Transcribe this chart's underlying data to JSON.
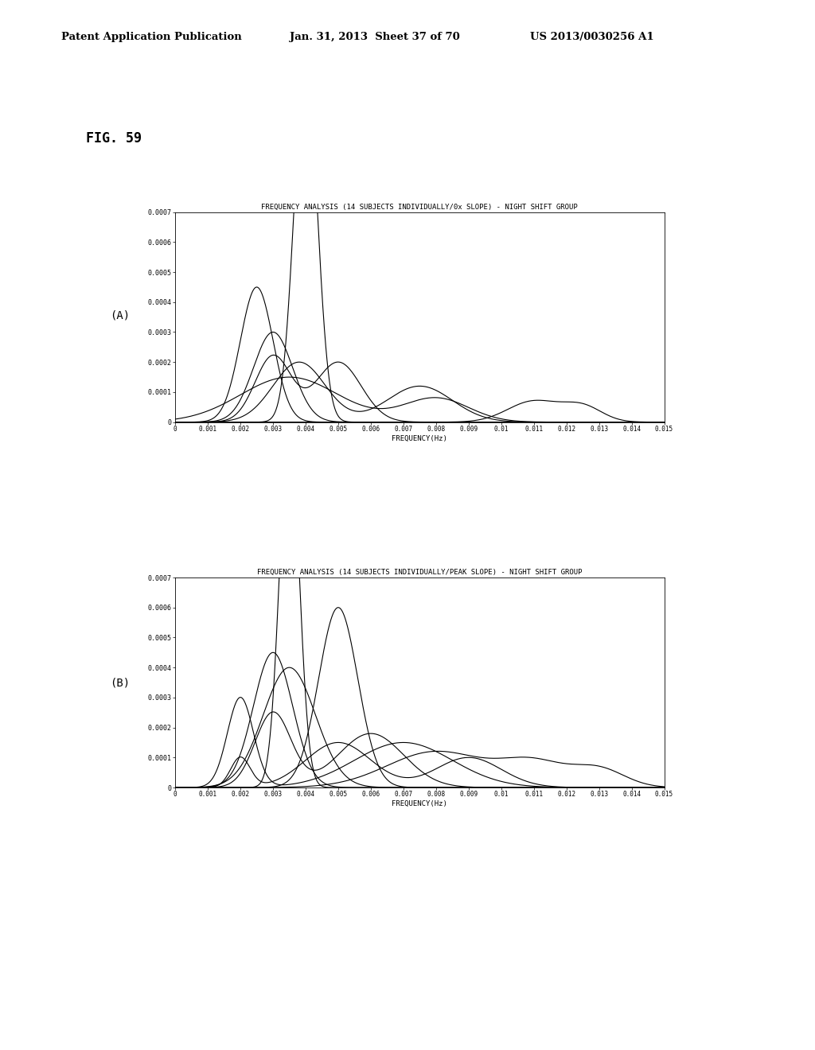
{
  "title_A": "FREQUENCY ANALYSIS (14 SUBJECTS INDIVIDUALLY/0x SLOPE) - NIGHT SHIFT GROUP",
  "title_B": "FREQUENCY ANALYSIS (14 SUBJECTS INDIVIDUALLY/PEAK SLOPE) - NIGHT SHIFT GROUP",
  "xlabel": "FREQUENCY(Hz)",
  "fig_label": "FIG. 59",
  "label_A": "(A)",
  "label_B": "(B)",
  "header_left": "Patent Application Publication",
  "header_mid": "Jan. 31, 2013  Sheet 37 of 70",
  "header_right": "US 2013/0030256 A1",
  "xlim": [
    0,
    0.015
  ],
  "ylim": [
    0,
    0.0007
  ],
  "xtick_labels": [
    "0",
    "0.001",
    "0.002",
    "0.003",
    "0.004",
    "0.005",
    "0.006",
    "0.007",
    "0.008",
    "0.009",
    "0.01",
    "0.011",
    "0.012",
    "0.013",
    "0.014",
    "0.015"
  ],
  "xtick_vals": [
    0,
    0.001,
    0.002,
    0.003,
    0.004,
    0.005,
    0.006,
    0.007,
    0.008,
    0.009,
    0.01,
    0.011,
    0.012,
    0.013,
    0.014,
    0.015
  ],
  "ytick_labels": [
    "0",
    "0.0001",
    "0.0002",
    "0.0003",
    "0.0004",
    "0.0005",
    "0.0006",
    "0.0007"
  ],
  "ytick_vals": [
    0,
    0.0001,
    0.0002,
    0.0003,
    0.0004,
    0.0005,
    0.0006,
    0.0007
  ],
  "background_color": "#ffffff",
  "line_color": "#000000"
}
